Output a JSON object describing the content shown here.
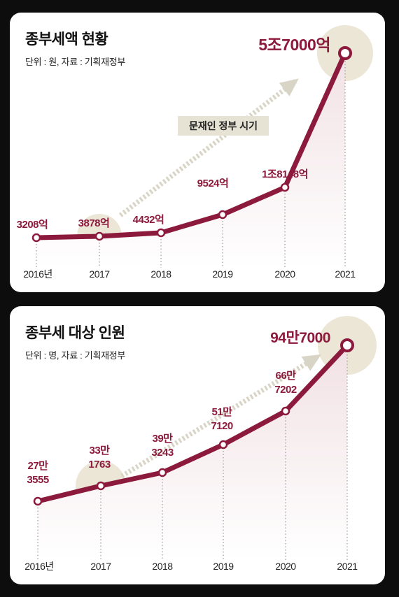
{
  "colors": {
    "line": "#8c1a3c",
    "label": "#8c1a3c",
    "arrow": "#d9d5c6",
    "highlight_circle": "#ebe6d6",
    "area_top": "#f1e1e4",
    "grid": "#9a9a9a"
  },
  "chart_data": [
    {
      "type": "line",
      "title": "종부세액 현황",
      "subtitle": "단위 : 원, 자료 : 기획재정부",
      "categories": [
        "2016년",
        "2017",
        "2018",
        "2019",
        "2020",
        "2021"
      ],
      "values": [
        3208,
        3878,
        4432,
        9524,
        18148,
        57000
      ],
      "value_unit": "억 원",
      "data_labels": [
        [
          "3208억"
        ],
        [
          "3878억"
        ],
        [
          "4432억"
        ],
        [
          "9524억"
        ],
        [
          "1조8148억"
        ],
        [
          "5조7000억"
        ]
      ],
      "annotation": "문재인 정부 시기",
      "ylim": [
        0,
        60000
      ],
      "grid": false,
      "highlighted_points": [
        "2017",
        "2021"
      ]
    },
    {
      "type": "line",
      "title": "종부세 대상 인원",
      "subtitle": "단위 : 명, 자료 : 기획재정부",
      "categories": [
        "2016년",
        "2017",
        "2018",
        "2019",
        "2020",
        "2021"
      ],
      "values": [
        273555,
        331763,
        393243,
        517120,
        667202,
        947000
      ],
      "value_unit": "명",
      "data_labels": [
        [
          "27만",
          "3555"
        ],
        [
          "33만",
          "1763"
        ],
        [
          "39만",
          "3243"
        ],
        [
          "51만",
          "7120"
        ],
        [
          "66만",
          "7202"
        ],
        [
          "94만7000"
        ]
      ],
      "annotation": "",
      "ylim": [
        0,
        1000000
      ],
      "grid": false,
      "highlighted_points": [
        "2017",
        "2021"
      ]
    }
  ]
}
